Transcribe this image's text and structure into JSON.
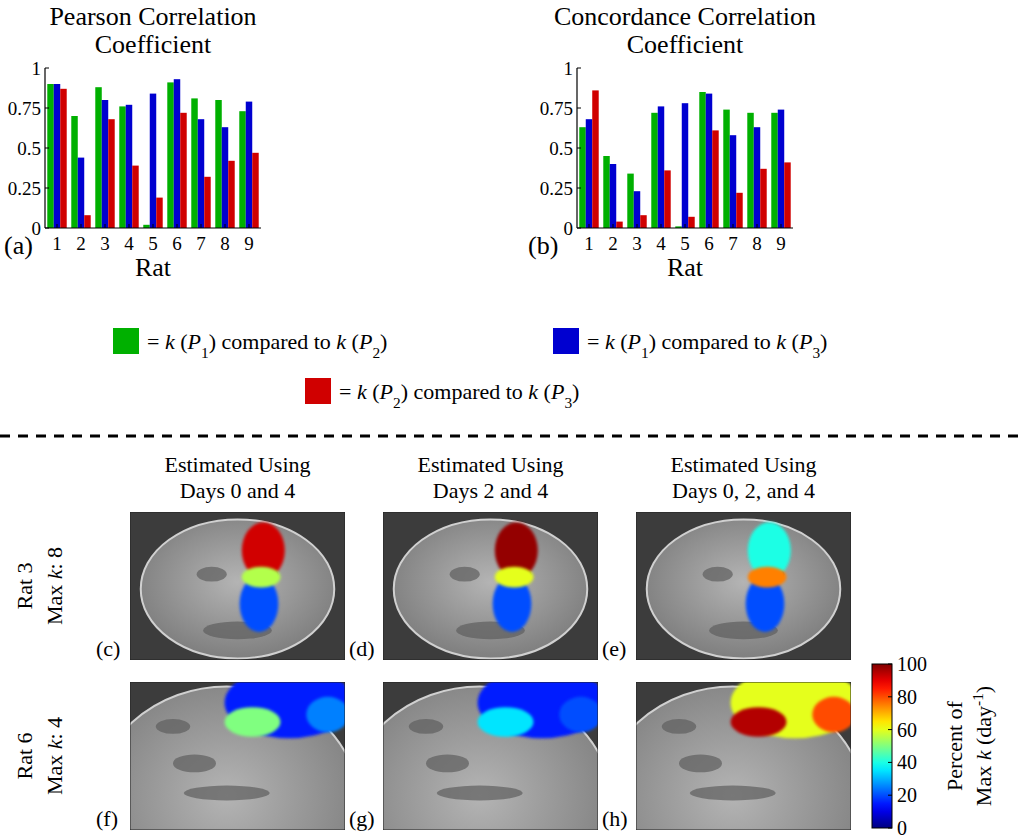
{
  "chart_data": [
    {
      "type": "bar",
      "title": "Pearson Correlation Coefficient",
      "x_label": "Rat",
      "label": "(a)",
      "categories": [
        "1",
        "2",
        "3",
        "4",
        "5",
        "6",
        "7",
        "8",
        "9"
      ],
      "ylim": [
        0,
        1
      ],
      "yticks": [
        0,
        0.25,
        0.5,
        0.75,
        1
      ],
      "grid": false,
      "legend": "bottom",
      "series": [
        {
          "name": "= k (P1) compared to k (P2)",
          "color": "#00b000",
          "values": [
            0.9,
            0.7,
            0.88,
            0.76,
            0.02,
            0.91,
            0.81,
            0.8,
            0.73
          ]
        },
        {
          "name": "= k (P1) compared to k (P3)",
          "color": "#0000d0",
          "values": [
            0.9,
            0.44,
            0.8,
            0.77,
            0.84,
            0.93,
            0.68,
            0.63,
            0.79
          ]
        },
        {
          "name": "= k (P2) compared to k (P3)",
          "color": "#d00000",
          "values": [
            0.87,
            0.08,
            0.68,
            0.39,
            0.19,
            0.72,
            0.32,
            0.42,
            0.47
          ]
        }
      ]
    },
    {
      "type": "bar",
      "title": "Concordance Correlation Coefficient",
      "x_label": "Rat",
      "label": "(b)",
      "categories": [
        "1",
        "2",
        "3",
        "4",
        "5",
        "6",
        "7",
        "8",
        "9"
      ],
      "ylim": [
        0,
        1
      ],
      "yticks": [
        0,
        0.25,
        0.5,
        0.75,
        1
      ],
      "grid": false,
      "series": [
        {
          "name": "= k (P1) compared to k (P2)",
          "color": "#00b000",
          "values": [
            0.63,
            0.45,
            0.34,
            0.72,
            0.01,
            0.85,
            0.74,
            0.72,
            0.72
          ]
        },
        {
          "name": "= k (P1) compared to k (P3)",
          "color": "#0000d0",
          "values": [
            0.68,
            0.4,
            0.23,
            0.76,
            0.78,
            0.84,
            0.58,
            0.63,
            0.74
          ]
        },
        {
          "name": "= k (P2) compared to k (P3)",
          "color": "#d00000",
          "values": [
            0.86,
            0.04,
            0.08,
            0.36,
            0.07,
            0.61,
            0.22,
            0.37,
            0.41
          ]
        }
      ]
    }
  ],
  "maps": {
    "columns": [
      "Estimated Using Days 0 and 4",
      "Estimated Using Days 2 and 4",
      "Estimated Using Days 0, 2, and 4"
    ],
    "rows": [
      {
        "label": "Rat 3",
        "max_k_label": "Max k:",
        "max_k": 8,
        "letters": [
          "(c)",
          "(d)",
          "(e)"
        ],
        "regions": [
          [
            92,
            20,
            55
          ],
          [
            98,
            20,
            60
          ],
          [
            40,
            20,
            75
          ]
        ]
      },
      {
        "label": "Rat 6",
        "max_k_label": "Max k:",
        "max_k": 4,
        "letters": [
          "(f)",
          "(g)",
          "(h)"
        ],
        "regions": [
          [
            15,
            50,
            25
          ],
          [
            15,
            35,
            20
          ],
          [
            60,
            95,
            80
          ]
        ]
      }
    ],
    "colorbar": {
      "title": "Percent of Max k (day-1)",
      "range": [
        0,
        100
      ],
      "ticks": [
        0,
        20,
        40,
        60,
        80,
        100
      ]
    }
  }
}
